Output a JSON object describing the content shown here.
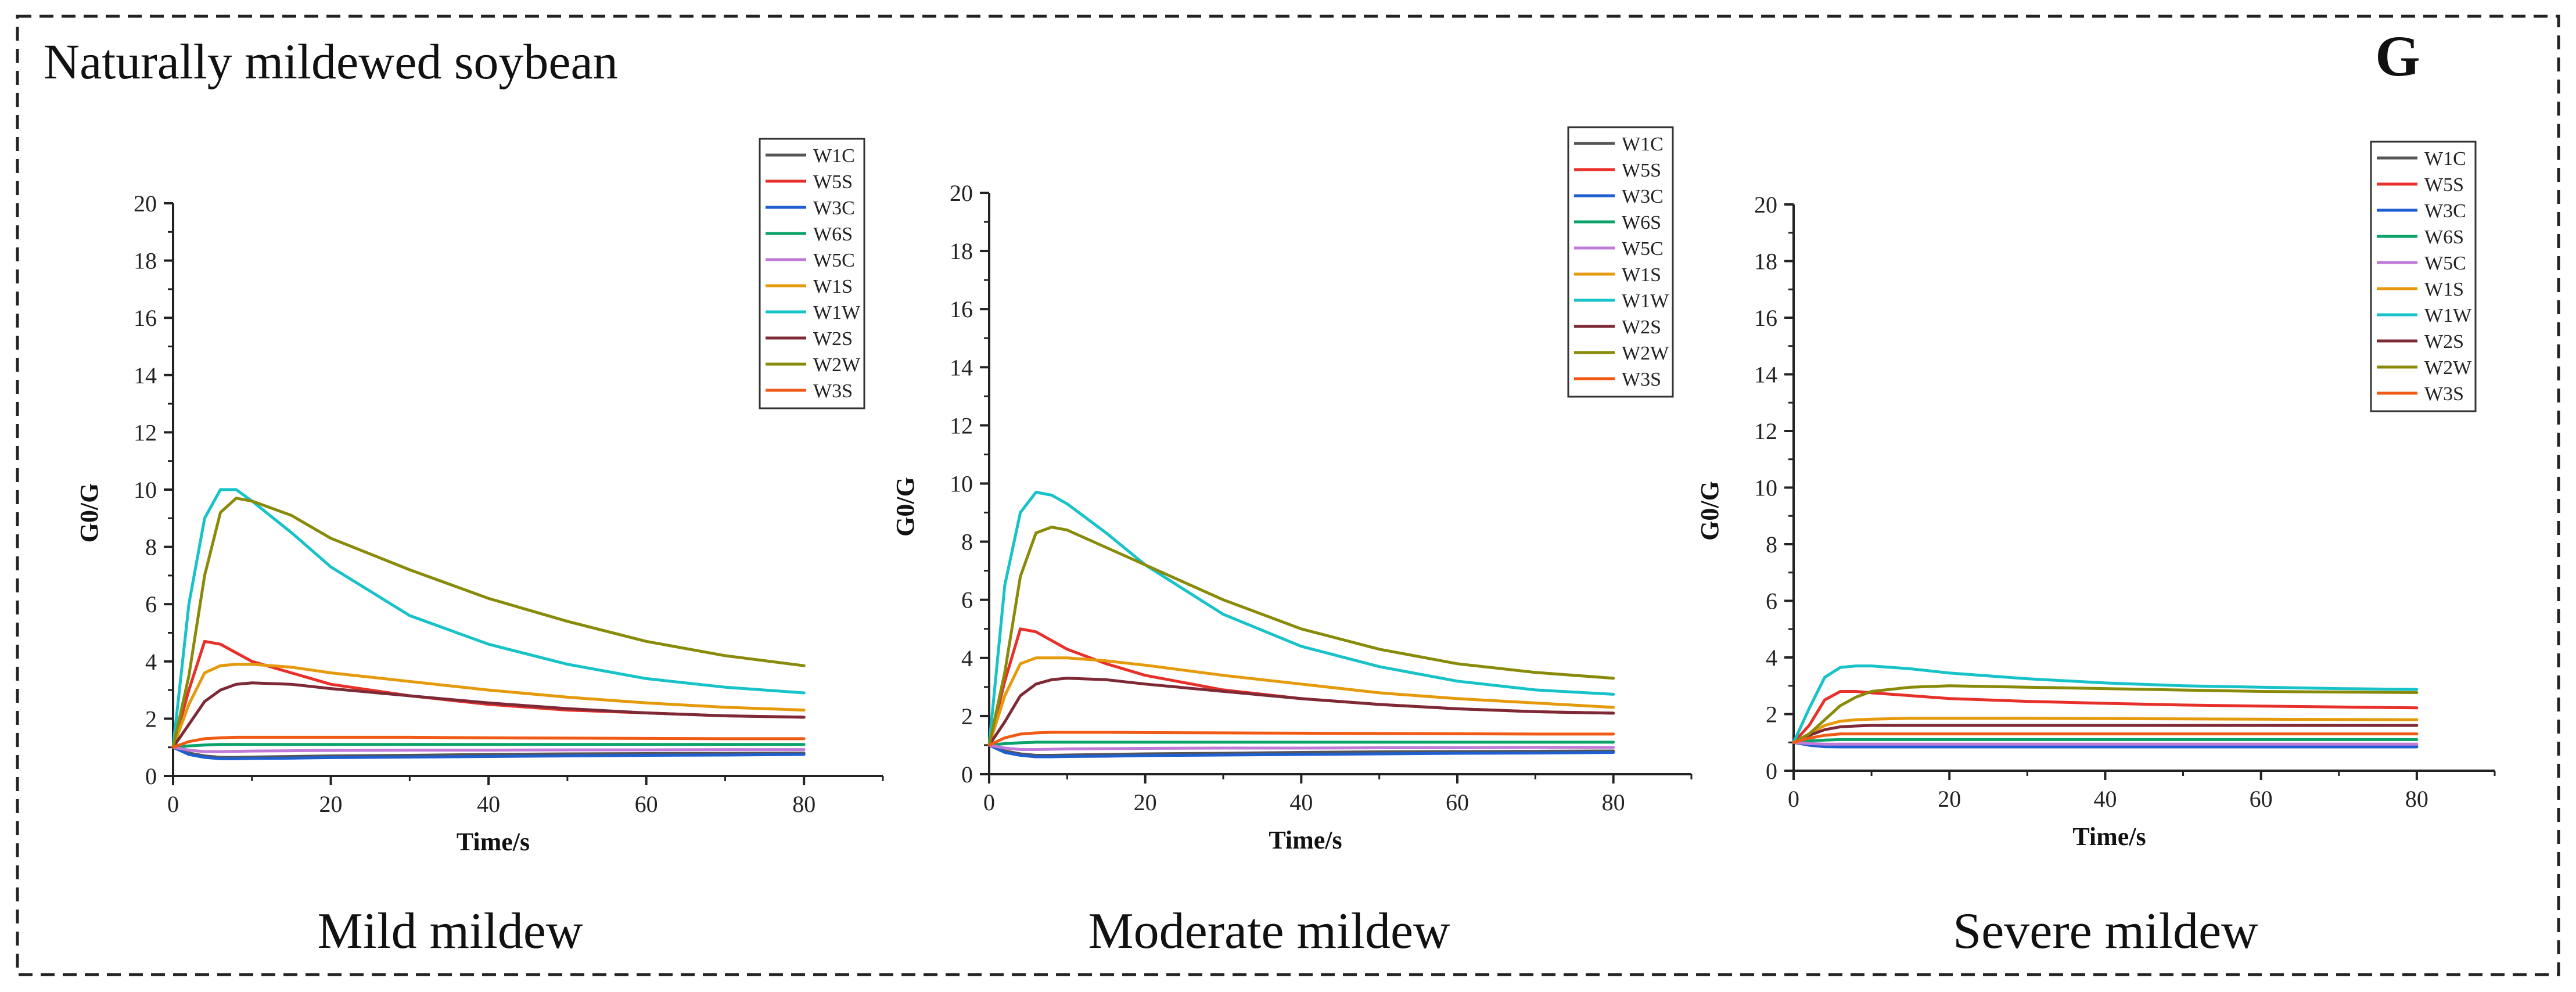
{
  "figure": {
    "title": "Naturally mildewed soybean",
    "panel_letter": "G"
  },
  "colors": {
    "W1C": "#555555",
    "W5S": "#e8302a",
    "W3C": "#1f5fcf",
    "W6S": "#0aa36a",
    "W5C": "#c07bd8",
    "W1S": "#e59a0c",
    "W1W": "#17c2c8",
    "W2S": "#7e2a36",
    "W2W": "#8a8a0a",
    "W3S": "#f05a14"
  },
  "chart_data": [
    {
      "type": "line",
      "caption": "Mild mildew",
      "title": "",
      "xlabel": "Time/s",
      "ylabel": "G0/G",
      "xlim": [
        0,
        90
      ],
      "ylim": [
        0,
        20
      ],
      "xticks": [
        0,
        20,
        40,
        60,
        80
      ],
      "yticks": [
        0,
        2,
        4,
        6,
        8,
        10,
        12,
        14,
        16,
        18,
        20
      ],
      "legend_position": "top-right",
      "x": [
        0,
        2,
        4,
        6,
        8,
        10,
        15,
        20,
        30,
        40,
        50,
        60,
        70,
        80
      ],
      "series": [
        {
          "name": "W1C",
          "values": [
            1.0,
            0.8,
            0.7,
            0.65,
            0.65,
            0.66,
            0.68,
            0.7,
            0.72,
            0.75,
            0.77,
            0.78,
            0.79,
            0.8
          ]
        },
        {
          "name": "W5S",
          "values": [
            1.0,
            3.0,
            4.7,
            4.6,
            4.3,
            4.0,
            3.6,
            3.2,
            2.8,
            2.5,
            2.3,
            2.2,
            2.1,
            2.05
          ]
        },
        {
          "name": "W3C",
          "values": [
            1.0,
            0.75,
            0.65,
            0.6,
            0.6,
            0.61,
            0.62,
            0.64,
            0.66,
            0.68,
            0.7,
            0.72,
            0.73,
            0.75
          ]
        },
        {
          "name": "W6S",
          "values": [
            1.0,
            1.05,
            1.08,
            1.1,
            1.1,
            1.1,
            1.1,
            1.1,
            1.1,
            1.1,
            1.1,
            1.1,
            1.1,
            1.1
          ]
        },
        {
          "name": "W5C",
          "values": [
            1.0,
            0.9,
            0.85,
            0.85,
            0.86,
            0.87,
            0.88,
            0.89,
            0.9,
            0.9,
            0.91,
            0.91,
            0.92,
            0.92
          ]
        },
        {
          "name": "W1S",
          "values": [
            1.0,
            2.5,
            3.6,
            3.85,
            3.9,
            3.9,
            3.8,
            3.6,
            3.3,
            3.0,
            2.75,
            2.55,
            2.4,
            2.3
          ]
        },
        {
          "name": "W1W",
          "values": [
            1.0,
            6.0,
            9.0,
            10.0,
            10.0,
            9.6,
            8.5,
            7.3,
            5.6,
            4.6,
            3.9,
            3.4,
            3.1,
            2.9
          ]
        },
        {
          "name": "W2S",
          "values": [
            1.0,
            1.8,
            2.6,
            3.0,
            3.2,
            3.25,
            3.2,
            3.05,
            2.8,
            2.55,
            2.35,
            2.2,
            2.1,
            2.05
          ]
        },
        {
          "name": "W2W",
          "values": [
            1.0,
            3.5,
            7.0,
            9.2,
            9.7,
            9.6,
            9.1,
            8.3,
            7.2,
            6.2,
            5.4,
            4.7,
            4.2,
            3.85
          ]
        },
        {
          "name": "W3S",
          "values": [
            1.0,
            1.2,
            1.3,
            1.33,
            1.35,
            1.35,
            1.35,
            1.35,
            1.35,
            1.33,
            1.32,
            1.31,
            1.3,
            1.3
          ]
        }
      ]
    },
    {
      "type": "line",
      "caption": "Moderate mildew",
      "title": "",
      "xlabel": "Time/s",
      "ylabel": "G0/G",
      "xlim": [
        0,
        90
      ],
      "ylim": [
        0,
        20
      ],
      "xticks": [
        0,
        20,
        40,
        60,
        80
      ],
      "yticks": [
        0,
        2,
        4,
        6,
        8,
        10,
        12,
        14,
        16,
        18,
        20
      ],
      "legend_position": "top-right",
      "x": [
        0,
        2,
        4,
        6,
        8,
        10,
        15,
        20,
        30,
        40,
        50,
        60,
        70,
        80
      ],
      "series": [
        {
          "name": "W1C",
          "values": [
            1.0,
            0.8,
            0.7,
            0.65,
            0.65,
            0.66,
            0.68,
            0.7,
            0.72,
            0.75,
            0.77,
            0.78,
            0.79,
            0.8
          ]
        },
        {
          "name": "W5S",
          "values": [
            1.0,
            3.2,
            5.0,
            4.9,
            4.6,
            4.3,
            3.8,
            3.4,
            2.9,
            2.6,
            2.4,
            2.25,
            2.15,
            2.1
          ]
        },
        {
          "name": "W3C",
          "values": [
            1.0,
            0.75,
            0.65,
            0.6,
            0.6,
            0.61,
            0.62,
            0.64,
            0.66,
            0.68,
            0.7,
            0.72,
            0.73,
            0.75
          ]
        },
        {
          "name": "W6S",
          "values": [
            1.0,
            1.05,
            1.08,
            1.1,
            1.1,
            1.1,
            1.1,
            1.1,
            1.1,
            1.1,
            1.1,
            1.1,
            1.1,
            1.1
          ]
        },
        {
          "name": "W5C",
          "values": [
            1.0,
            0.9,
            0.85,
            0.85,
            0.86,
            0.87,
            0.88,
            0.89,
            0.9,
            0.9,
            0.91,
            0.91,
            0.92,
            0.92
          ]
        },
        {
          "name": "W1S",
          "values": [
            1.0,
            2.7,
            3.8,
            4.0,
            4.0,
            4.0,
            3.9,
            3.75,
            3.4,
            3.1,
            2.8,
            2.6,
            2.45,
            2.3
          ]
        },
        {
          "name": "W1W",
          "values": [
            1.0,
            6.5,
            9.0,
            9.7,
            9.6,
            9.3,
            8.3,
            7.2,
            5.5,
            4.4,
            3.7,
            3.2,
            2.9,
            2.75
          ]
        },
        {
          "name": "W2S",
          "values": [
            1.0,
            1.8,
            2.7,
            3.1,
            3.25,
            3.3,
            3.25,
            3.1,
            2.85,
            2.6,
            2.4,
            2.25,
            2.15,
            2.1
          ]
        },
        {
          "name": "W2W",
          "values": [
            1.0,
            3.5,
            6.8,
            8.3,
            8.5,
            8.4,
            7.8,
            7.2,
            6.0,
            5.0,
            4.3,
            3.8,
            3.5,
            3.3
          ]
        },
        {
          "name": "W3S",
          "values": [
            1.0,
            1.25,
            1.38,
            1.42,
            1.44,
            1.44,
            1.44,
            1.43,
            1.42,
            1.41,
            1.4,
            1.39,
            1.38,
            1.38
          ]
        }
      ]
    },
    {
      "type": "line",
      "caption": "Severe mildew",
      "title": "",
      "xlabel": "Time/s",
      "ylabel": "G0/G",
      "xlim": [
        0,
        90
      ],
      "ylim": [
        0,
        20
      ],
      "xticks": [
        0,
        20,
        40,
        60,
        80
      ],
      "yticks": [
        0,
        2,
        4,
        6,
        8,
        10,
        12,
        14,
        16,
        18,
        20
      ],
      "legend_position": "top-right",
      "x": [
        0,
        2,
        4,
        6,
        8,
        10,
        15,
        20,
        30,
        40,
        50,
        60,
        70,
        80
      ],
      "series": [
        {
          "name": "W1C",
          "values": [
            1.0,
            0.92,
            0.88,
            0.86,
            0.86,
            0.86,
            0.86,
            0.86,
            0.86,
            0.86,
            0.86,
            0.86,
            0.86,
            0.86
          ]
        },
        {
          "name": "W5S",
          "values": [
            1.0,
            1.6,
            2.5,
            2.8,
            2.8,
            2.75,
            2.65,
            2.55,
            2.45,
            2.38,
            2.32,
            2.28,
            2.25,
            2.22
          ]
        },
        {
          "name": "W3C",
          "values": [
            1.0,
            0.9,
            0.85,
            0.84,
            0.84,
            0.84,
            0.84,
            0.84,
            0.84,
            0.84,
            0.84,
            0.84,
            0.84,
            0.84
          ]
        },
        {
          "name": "W6S",
          "values": [
            1.0,
            1.05,
            1.08,
            1.1,
            1.1,
            1.1,
            1.1,
            1.1,
            1.1,
            1.1,
            1.1,
            1.1,
            1.1,
            1.1
          ]
        },
        {
          "name": "W5C",
          "values": [
            1.0,
            0.96,
            0.94,
            0.94,
            0.94,
            0.94,
            0.94,
            0.94,
            0.94,
            0.94,
            0.94,
            0.94,
            0.94,
            0.94
          ]
        },
        {
          "name": "W1S",
          "values": [
            1.0,
            1.3,
            1.6,
            1.75,
            1.8,
            1.82,
            1.85,
            1.85,
            1.85,
            1.84,
            1.83,
            1.82,
            1.81,
            1.8
          ]
        },
        {
          "name": "W1W",
          "values": [
            1.0,
            2.2,
            3.3,
            3.65,
            3.7,
            3.7,
            3.6,
            3.45,
            3.25,
            3.1,
            3.0,
            2.95,
            2.9,
            2.87
          ]
        },
        {
          "name": "W2S",
          "values": [
            1.0,
            1.25,
            1.45,
            1.55,
            1.58,
            1.6,
            1.6,
            1.6,
            1.6,
            1.6,
            1.6,
            1.6,
            1.6,
            1.6
          ]
        },
        {
          "name": "W2W",
          "values": [
            1.0,
            1.3,
            1.8,
            2.3,
            2.6,
            2.8,
            2.95,
            3.0,
            2.95,
            2.9,
            2.85,
            2.8,
            2.78,
            2.76
          ]
        },
        {
          "name": "W3S",
          "values": [
            1.0,
            1.15,
            1.25,
            1.3,
            1.3,
            1.3,
            1.3,
            1.3,
            1.3,
            1.3,
            1.3,
            1.3,
            1.3,
            1.3
          ]
        }
      ]
    }
  ]
}
